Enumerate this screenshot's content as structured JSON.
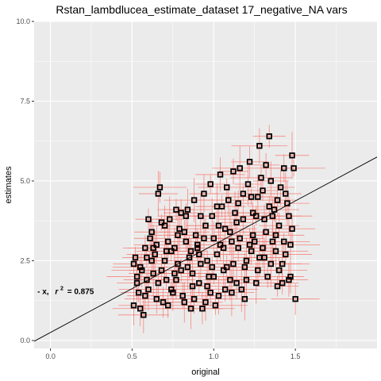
{
  "chart_data": {
    "type": "scatter",
    "title": "Rstan_lambdlucea_estimate_dataset 17_negative_NA vars",
    "xlabel": "original",
    "ylabel": "estimates",
    "xlim": [
      -0.1,
      2.0
    ],
    "ylim": [
      -0.25,
      10.0
    ],
    "x_ticks": [
      0.0,
      0.5,
      1.0,
      1.5
    ],
    "x_tick_labels": [
      "0.0",
      "0.5",
      "1.0",
      "1.5"
    ],
    "y_ticks": [
      0.0,
      2.5,
      5.0,
      7.5,
      10.0
    ],
    "y_tick_labels": [
      "0.0",
      "2.5",
      "5.0",
      "7.5",
      "10.0"
    ],
    "grid": true,
    "annotation": {
      "prefix": "- x,",
      "r": "r",
      "sup": "2",
      "suffix": "= 0.875",
      "x": -0.08,
      "y": 1.45
    },
    "reference_line": {
      "intercept": 0.25,
      "slope": 2.75
    },
    "colors": {
      "panel": "#ebebeb",
      "grid": "#ffffff",
      "errorbar": "#f8766d",
      "point": "#000000",
      "line": "#000000"
    },
    "errorbar_xhalf_range": [
      0.08,
      0.2
    ],
    "errorbar_yhalf_range": [
      0.25,
      0.75
    ],
    "points": [
      [
        0.52,
        2.6
      ],
      [
        0.53,
        1.8
      ],
      [
        0.55,
        2.3
      ],
      [
        0.51,
        1.1
      ],
      [
        0.58,
        2.9
      ],
      [
        0.6,
        1.6
      ],
      [
        0.62,
        3.4
      ],
      [
        0.63,
        2.1
      ],
      [
        0.65,
        1.3
      ],
      [
        0.66,
        4.6
      ],
      [
        0.67,
        4.8
      ],
      [
        0.68,
        3.7
      ],
      [
        0.7,
        2.5
      ],
      [
        0.71,
        1.9
      ],
      [
        0.72,
        3.1
      ],
      [
        0.74,
        2.8
      ],
      [
        0.75,
        1.5
      ],
      [
        0.77,
        4.1
      ],
      [
        0.78,
        3.3
      ],
      [
        0.8,
        2.2
      ],
      [
        0.82,
        1.2
      ],
      [
        0.83,
        3.9
      ],
      [
        0.85,
        2.6
      ],
      [
        0.87,
        1.7
      ],
      [
        0.88,
        4.4
      ],
      [
        0.9,
        3.0
      ],
      [
        0.92,
        2.4
      ],
      [
        0.93,
        1.0
      ],
      [
        0.95,
        3.6
      ],
      [
        0.97,
        2.0
      ],
      [
        0.98,
        4.9
      ],
      [
        1.0,
        3.2
      ],
      [
        1.02,
        2.7
      ],
      [
        1.03,
        1.4
      ],
      [
        1.05,
        4.2
      ],
      [
        1.07,
        3.5
      ],
      [
        1.08,
        2.3
      ],
      [
        1.1,
        1.9
      ],
      [
        1.12,
        5.3
      ],
      [
        1.13,
        4.0
      ],
      [
        1.15,
        2.9
      ],
      [
        1.17,
        1.6
      ],
      [
        1.18,
        3.8
      ],
      [
        1.2,
        2.5
      ],
      [
        1.22,
        5.6
      ],
      [
        1.23,
        4.5
      ],
      [
        1.25,
        3.1
      ],
      [
        1.27,
        2.2
      ],
      [
        1.28,
        6.1
      ],
      [
        1.3,
        4.7
      ],
      [
        1.32,
        3.4
      ],
      [
        1.33,
        2.0
      ],
      [
        1.35,
        5.0
      ],
      [
        1.37,
        4.1
      ],
      [
        1.38,
        2.8
      ],
      [
        1.4,
        3.6
      ],
      [
        1.42,
        2.4
      ],
      [
        1.43,
        5.4
      ],
      [
        1.45,
        4.3
      ],
      [
        1.47,
        3.0
      ],
      [
        1.48,
        5.8
      ],
      [
        1.5,
        1.3
      ],
      [
        1.49,
        5.4
      ],
      [
        1.46,
        1.9
      ],
      [
        1.44,
        2.7
      ],
      [
        1.41,
        4.8
      ],
      [
        1.39,
        1.7
      ],
      [
        1.36,
        3.9
      ],
      [
        1.34,
        6.4
      ],
      [
        1.31,
        2.6
      ],
      [
        1.29,
        5.1
      ],
      [
        1.26,
        1.8
      ],
      [
        1.24,
        3.3
      ],
      [
        1.21,
        4.9
      ],
      [
        1.19,
        2.3
      ],
      [
        1.16,
        5.4
      ],
      [
        1.14,
        3.7
      ],
      [
        1.11,
        1.5
      ],
      [
        1.09,
        4.4
      ],
      [
        1.06,
        2.9
      ],
      [
        1.04,
        5.2
      ],
      [
        1.01,
        1.1
      ],
      [
        0.99,
        3.9
      ],
      [
        0.96,
        2.5
      ],
      [
        0.94,
        4.6
      ],
      [
        0.91,
        1.8
      ],
      [
        0.89,
        3.3
      ],
      [
        0.86,
        2.8
      ],
      [
        0.84,
        4.1
      ],
      [
        0.81,
        1.4
      ],
      [
        0.79,
        3.5
      ],
      [
        0.76,
        2.1
      ],
      [
        0.73,
        3.8
      ],
      [
        0.69,
        1.2
      ],
      [
        0.64,
        2.7
      ],
      [
        0.61,
        3.2
      ],
      [
        0.59,
        1.9
      ],
      [
        0.56,
        2.2
      ],
      [
        0.54,
        1.5
      ],
      [
        0.57,
        0.8
      ],
      [
        0.6,
        3.8
      ],
      [
        0.62,
        2.5
      ],
      [
        0.66,
        1.8
      ],
      [
        0.7,
        3.6
      ],
      [
        0.72,
        1.1
      ],
      [
        0.76,
        2.9
      ],
      [
        0.8,
        4.0
      ],
      [
        0.84,
        2.3
      ],
      [
        0.88,
        1.3
      ],
      [
        0.92,
        3.9
      ],
      [
        0.96,
        1.7
      ],
      [
        1.0,
        2.0
      ],
      [
        1.04,
        3.0
      ],
      [
        1.08,
        4.8
      ],
      [
        1.12,
        2.4
      ],
      [
        1.16,
        3.2
      ],
      [
        1.2,
        1.9
      ],
      [
        1.24,
        4.0
      ],
      [
        1.28,
        2.6
      ],
      [
        1.32,
        5.5
      ],
      [
        1.36,
        3.1
      ],
      [
        1.4,
        2.2
      ],
      [
        1.44,
        4.6
      ],
      [
        1.48,
        3.5
      ],
      [
        0.53,
        2.0
      ],
      [
        0.58,
        1.4
      ],
      [
        0.63,
        2.9
      ],
      [
        0.68,
        2.2
      ],
      [
        0.74,
        1.6
      ],
      [
        0.78,
        2.4
      ],
      [
        0.83,
        3.1
      ],
      [
        0.87,
        2.1
      ],
      [
        0.91,
        2.7
      ],
      [
        0.95,
        1.2
      ],
      [
        0.99,
        2.3
      ],
      [
        1.03,
        3.6
      ],
      [
        1.07,
        1.6
      ],
      [
        1.11,
        3.1
      ],
      [
        1.15,
        4.3
      ],
      [
        1.19,
        1.3
      ],
      [
        1.23,
        2.8
      ],
      [
        1.27,
        4.5
      ],
      [
        1.31,
        3.8
      ],
      [
        1.35,
        2.4
      ],
      [
        1.39,
        4.4
      ],
      [
        1.43,
        3.1
      ],
      [
        1.47,
        2.0
      ],
      [
        0.51,
        2.4
      ],
      [
        0.55,
        1.0
      ],
      [
        0.59,
        2.6
      ],
      [
        0.65,
        3.0
      ],
      [
        0.71,
        2.8
      ],
      [
        0.77,
        1.9
      ],
      [
        0.82,
        3.4
      ],
      [
        0.86,
        1.0
      ],
      [
        0.9,
        2.9
      ],
      [
        0.94,
        3.2
      ],
      [
        0.98,
        1.5
      ],
      [
        1.02,
        4.2
      ],
      [
        1.06,
        2.2
      ],
      [
        1.1,
        3.4
      ],
      [
        1.14,
        1.8
      ],
      [
        1.18,
        4.6
      ],
      [
        1.22,
        3.0
      ],
      [
        1.26,
        3.9
      ],
      [
        1.3,
        2.9
      ],
      [
        1.34,
        4.2
      ],
      [
        1.38,
        3.3
      ],
      [
        1.42,
        1.8
      ],
      [
        1.46,
        3.9
      ]
    ]
  }
}
